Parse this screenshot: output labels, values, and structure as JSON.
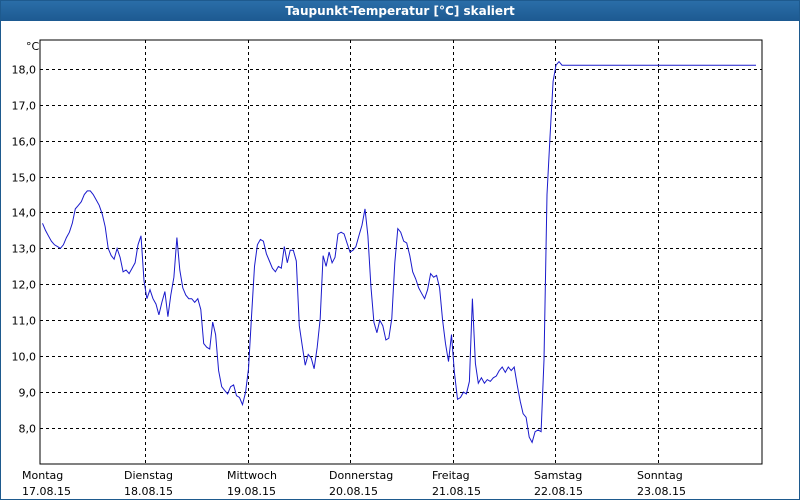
{
  "window": {
    "title": "Taupunkt-Temperatur [°C] skaliert"
  },
  "colors": {
    "line": "#1a1acc",
    "grid": "#000000",
    "titlebar": "#2266a2"
  },
  "chart_data": {
    "type": "line",
    "title": "Taupunkt-Temperatur [°C] skaliert",
    "ylabel": "°C",
    "xlabel": "",
    "ylim": [
      7.0,
      18.8
    ],
    "xlim": [
      0,
      7
    ],
    "grid": true,
    "y_ticks": [
      8.0,
      9.0,
      10.0,
      11.0,
      12.0,
      13.0,
      14.0,
      15.0,
      16.0,
      17.0,
      18.0
    ],
    "y_tick_labels": [
      "8,0",
      "9,0",
      "10,0",
      "11,0",
      "12,0",
      "13,0",
      "14,0",
      "15,0",
      "16,0",
      "17,0",
      "18,0"
    ],
    "x_ticks": [
      {
        "day": "Montag",
        "date": "17.08.15"
      },
      {
        "day": "Dienstag",
        "date": "18.08.15"
      },
      {
        "day": "Mittwoch",
        "date": "19.08.15"
      },
      {
        "day": "Donnerstag",
        "date": "20.08.15"
      },
      {
        "day": "Freitag",
        "date": "21.08.15"
      },
      {
        "day": "Samstag",
        "date": "22.08.15"
      },
      {
        "day": "Sonntag",
        "date": "23.08.15"
      }
    ],
    "x_unit": "days since Montag 17.08.15 00:00",
    "series": [
      {
        "x": [
          0.0,
          0.029,
          0.058,
          0.087,
          0.117,
          0.146,
          0.175,
          0.204,
          0.233,
          0.262,
          0.291,
          0.32,
          0.35,
          0.379,
          0.408,
          0.437,
          0.466,
          0.495,
          0.524,
          0.553,
          0.583,
          0.612,
          0.641,
          0.67,
          0.699,
          0.728,
          0.757,
          0.786,
          0.816,
          0.845,
          0.874,
          0.903,
          0.932,
          0.961,
          0.99,
          1.019,
          1.049,
          1.078,
          1.107,
          1.136,
          1.165,
          1.194,
          1.223,
          1.252,
          1.282,
          1.311,
          1.34,
          1.369,
          1.398,
          1.427,
          1.456,
          1.485,
          1.515,
          1.544,
          1.573,
          1.602,
          1.631,
          1.66,
          1.689,
          1.718,
          1.748,
          1.777,
          1.806,
          1.835,
          1.864,
          1.893,
          1.922,
          1.951,
          1.981,
          2.01,
          2.039,
          2.068,
          2.097,
          2.126,
          2.155,
          2.184,
          2.214,
          2.243,
          2.272,
          2.301,
          2.33,
          2.359,
          2.388,
          2.417,
          2.447,
          2.476,
          2.505,
          2.534,
          2.563,
          2.592,
          2.621,
          2.65,
          2.68,
          2.709,
          2.738,
          2.767,
          2.796,
          2.825,
          2.854,
          2.883,
          2.913,
          2.942,
          2.971,
          3.0,
          3.029,
          3.058,
          3.087,
          3.117,
          3.146,
          3.175,
          3.204,
          3.233,
          3.262,
          3.291,
          3.32,
          3.35,
          3.379,
          3.408,
          3.437,
          3.466,
          3.495,
          3.524,
          3.553,
          3.583,
          3.612,
          3.641,
          3.67,
          3.699,
          3.728,
          3.757,
          3.786,
          3.816,
          3.845,
          3.874,
          3.903,
          3.932,
          3.961,
          3.99,
          4.019,
          4.049,
          4.078,
          4.107,
          4.136,
          4.165,
          4.194,
          4.223,
          4.252,
          4.282,
          4.311,
          4.34,
          4.369,
          4.398,
          4.427,
          4.456,
          4.485,
          4.515,
          4.544,
          4.573,
          4.602,
          4.631,
          4.66,
          4.689,
          4.718,
          4.748,
          4.777,
          4.806,
          4.835,
          4.864,
          4.893,
          4.922,
          4.951,
          4.981,
          5.01,
          5.039,
          5.068,
          5.097,
          5.126,
          5.155,
          5.184,
          5.214,
          5.243,
          5.272,
          5.301,
          5.33,
          5.359,
          5.388,
          5.417,
          5.447,
          5.476,
          5.505,
          5.534,
          5.563,
          5.592,
          5.621,
          5.65,
          5.68,
          5.709,
          5.738,
          5.767,
          5.796,
          5.825,
          5.854,
          5.883,
          5.913,
          5.942,
          5.971,
          6.0,
          6.029,
          6.058,
          6.087,
          6.117,
          6.146,
          6.175,
          6.204,
          6.233,
          6.262,
          6.291,
          6.32,
          6.35,
          6.379,
          6.408,
          6.437,
          6.466,
          6.495,
          6.524,
          6.553,
          6.583,
          6.612,
          6.641,
          6.67,
          6.699,
          6.728,
          6.757,
          6.786,
          6.816,
          6.845,
          6.874,
          6.903,
          6.932,
          6.961
        ],
        "y": [
          13.7,
          13.5,
          13.35,
          13.2,
          13.1,
          13.05,
          13.0,
          13.1,
          13.3,
          13.45,
          13.7,
          14.1,
          14.2,
          14.3,
          14.5,
          14.6,
          14.6,
          14.5,
          14.35,
          14.2,
          13.95,
          13.6,
          13.0,
          12.8,
          12.7,
          13.0,
          12.75,
          12.35,
          12.4,
          12.3,
          12.45,
          12.6,
          13.1,
          13.35,
          12.1,
          11.6,
          11.85,
          11.6,
          11.45,
          11.15,
          11.5,
          11.8,
          11.1,
          11.7,
          12.2,
          13.3,
          12.4,
          11.9,
          11.7,
          11.6,
          11.6,
          11.5,
          11.6,
          11.3,
          10.35,
          10.25,
          10.2,
          10.95,
          10.6,
          9.6,
          9.15,
          9.05,
          8.95,
          9.15,
          9.2,
          8.9,
          8.85,
          8.65,
          9.0,
          9.65,
          11.1,
          12.5,
          13.1,
          13.25,
          13.2,
          12.85,
          12.65,
          12.45,
          12.35,
          12.5,
          12.45,
          13.05,
          12.6,
          12.95,
          12.95,
          12.65,
          10.85,
          10.3,
          9.75,
          10.05,
          9.95,
          9.65,
          10.25,
          11.05,
          12.8,
          12.5,
          12.9,
          12.6,
          12.75,
          13.4,
          13.45,
          13.4,
          13.15,
          12.9,
          12.95,
          13.05,
          13.35,
          13.65,
          14.1,
          13.35,
          11.95,
          10.95,
          10.65,
          11.0,
          10.85,
          10.45,
          10.5,
          11.05,
          12.6,
          13.55,
          13.45,
          13.2,
          13.15,
          12.8,
          12.35,
          12.15,
          11.9,
          11.75,
          11.6,
          11.85,
          12.3,
          12.2,
          12.25,
          11.9,
          11.0,
          10.35,
          9.85,
          10.6,
          9.55,
          8.8,
          8.85,
          9.0,
          8.95,
          9.3,
          11.6,
          9.8,
          9.25,
          9.4,
          9.25,
          9.35,
          9.3,
          9.4,
          9.45,
          9.6,
          9.7,
          9.55,
          9.7,
          9.6,
          9.7,
          9.2,
          8.75,
          8.4,
          8.3,
          7.75,
          7.6,
          7.9,
          7.95,
          7.9,
          9.9,
          14.5,
          16.1,
          17.65,
          18.1,
          18.2,
          18.1,
          18.1,
          18.1,
          18.1,
          18.1,
          18.1,
          18.1,
          18.1,
          18.1,
          18.1,
          18.1,
          18.1,
          18.1,
          18.1,
          18.1,
          18.1,
          18.1,
          18.1,
          18.1,
          18.1,
          18.1,
          18.1,
          18.1,
          18.1,
          18.1,
          18.1,
          18.1,
          18.1,
          18.1,
          18.1,
          18.1,
          18.1,
          18.1,
          18.1,
          18.1,
          18.1,
          18.1,
          18.1,
          18.1,
          18.1,
          18.1,
          18.1,
          18.1,
          18.1,
          18.1,
          18.1,
          18.1,
          18.1,
          18.1,
          18.1,
          18.1,
          18.1,
          18.1,
          18.1,
          18.1,
          18.1,
          18.1,
          18.1,
          18.1,
          18.1,
          18.1,
          18.1,
          18.1,
          18.1,
          18.1,
          18.1
        ]
      }
    ]
  }
}
